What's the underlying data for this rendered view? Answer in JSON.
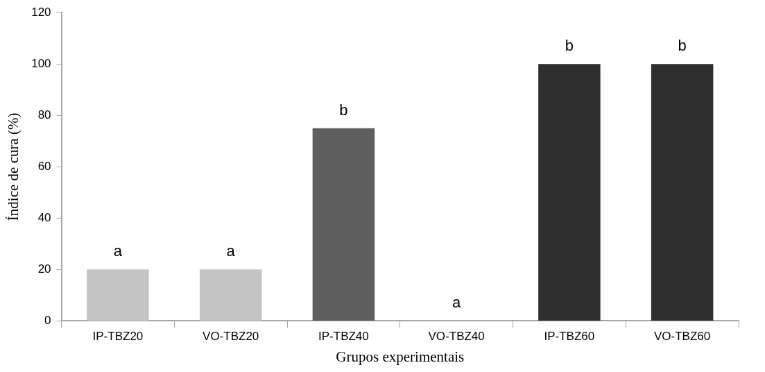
{
  "chart_data": {
    "type": "bar",
    "xlabel": "Grupos experimentais",
    "ylabel": "Índice de cura (%)",
    "categories": [
      "IP-TBZ20",
      "VO-TBZ20",
      "IP-TBZ40",
      "VO-TBZ40",
      "IP-TBZ60",
      "VO-TBZ60"
    ],
    "values": [
      20,
      20,
      75,
      0,
      100,
      100
    ],
    "colors": [
      "#c4c4c4",
      "#c4c4c4",
      "#5e5e5e",
      "#5e5e5e",
      "#2e2e2e",
      "#2e2e2e"
    ],
    "ylim": [
      0,
      120
    ],
    "yticks": [
      0,
      20,
      40,
      60,
      80,
      100,
      120
    ],
    "grid": false,
    "legend": false,
    "annotations": [
      {
        "text": "a",
        "x": "IP-TBZ20",
        "y": 20
      },
      {
        "text": "a",
        "x": "VO-TBZ20",
        "y": 20
      },
      {
        "text": "b",
        "x": "IP-TBZ40",
        "y": 75
      },
      {
        "text": "a",
        "x": "VO-TBZ40",
        "y": 0
      },
      {
        "text": "b",
        "x": "IP-TBZ60",
        "y": 100
      },
      {
        "text": "b",
        "x": "VO-TBZ60",
        "y": 100
      }
    ]
  }
}
